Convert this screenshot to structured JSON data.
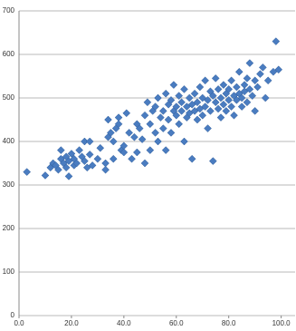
{
  "chart_data": {
    "type": "scatter",
    "x": [
      3,
      10,
      12,
      13,
      14,
      15,
      16,
      16,
      17,
      18,
      18,
      19,
      19,
      20,
      21,
      21,
      22,
      23,
      24,
      25,
      25,
      26,
      27,
      27,
      28,
      30,
      31,
      33,
      33,
      34,
      34,
      35,
      36,
      36,
      37,
      38,
      38,
      39,
      40,
      40,
      41,
      42,
      43,
      44,
      45,
      45,
      46,
      47,
      48,
      48,
      49,
      50,
      50,
      51,
      52,
      52,
      53,
      53,
      54,
      55,
      55,
      56,
      56,
      57,
      57,
      58,
      58,
      59,
      59,
      60,
      60,
      61,
      61,
      62,
      62,
      63,
      63,
      64,
      64,
      65,
      65,
      66,
      66,
      67,
      67,
      68,
      68,
      69,
      69,
      70,
      70,
      71,
      71,
      72,
      72,
      73,
      73,
      74,
      74,
      75,
      75,
      76,
      76,
      77,
      77,
      78,
      78,
      79,
      79,
      80,
      80,
      81,
      81,
      82,
      82,
      83,
      83,
      84,
      84,
      85,
      85,
      86,
      86,
      87,
      87,
      88,
      88,
      89,
      90,
      90,
      91,
      92,
      93,
      94,
      95,
      97,
      98,
      99
    ],
    "series": [
      {
        "color": "#4a7cc0",
        "values": [
          330,
          322,
          340,
          350,
          345,
          335,
          360,
          380,
          350,
          340,
          365,
          320,
          355,
          372,
          345,
          360,
          350,
          380,
          365,
          400,
          355,
          340,
          400,
          370,
          345,
          360,
          385,
          335,
          350,
          410,
          450,
          420,
          400,
          360,
          430,
          455,
          440,
          380,
          390,
          375,
          465,
          420,
          360,
          410,
          375,
          440,
          430,
          405,
          460,
          350,
          490,
          440,
          380,
          470,
          420,
          480,
          500,
          400,
          455,
          470,
          430,
          510,
          380,
          485,
          450,
          420,
          495,
          470,
          530,
          460,
          480,
          505,
          440,
          490,
          470,
          520,
          400,
          480,
          455,
          500,
          465,
          485,
          360,
          470,
          510,
          490,
          450,
          525,
          475,
          460,
          500,
          540,
          480,
          495,
          430,
          470,
          515,
          505,
          355,
          490,
          545,
          475,
          520,
          500,
          455,
          530,
          485,
          510,
          470,
          495,
          520,
          540,
          480,
          505,
          460,
          525,
          495,
          510,
          560,
          500,
          480,
          530,
          515,
          545,
          490,
          520,
          580,
          505,
          540,
          470,
          525,
          555,
          570,
          500,
          540,
          560,
          630,
          565
        ]
      }
    ],
    "xlim": [
      0,
      106
    ],
    "xticks": [
      {
        "value": 0,
        "label": "0.0"
      },
      {
        "value": 20,
        "label": "20.0"
      },
      {
        "value": 40,
        "label": "40.0"
      },
      {
        "value": 60,
        "label": "60.0"
      },
      {
        "value": 80,
        "label": "80.0"
      },
      {
        "value": 100,
        "label": "100.0"
      }
    ],
    "ylim": [
      0,
      700
    ],
    "yticks": [
      0,
      100,
      200,
      300,
      400,
      500,
      600,
      700
    ],
    "grid": true
  }
}
